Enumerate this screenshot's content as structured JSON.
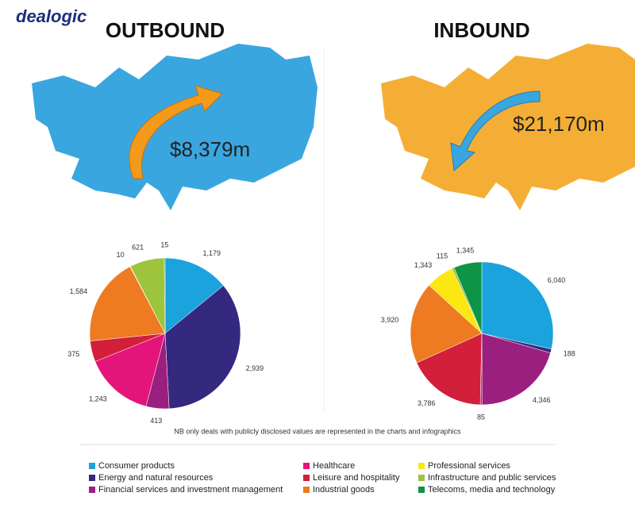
{
  "logo": "dealogic",
  "note": "NB only deals with publicly disclosed values are represented in the charts and infographics",
  "categories": [
    "Consumer products",
    "Energy and natural resources",
    "Financial services and investment management",
    "Healthcare",
    "Leisure and hospitality",
    "Industrial goods",
    "Professional services",
    "Infrastructure and public services",
    "Telecoms, media and technology"
  ],
  "colors": [
    "#1aa3dc",
    "#35287f",
    "#9b1f7e",
    "#e3157a",
    "#d21f3a",
    "#ee7b22",
    "#fce712",
    "#9dc43a",
    "#0d9447"
  ],
  "chart_data": [
    {
      "type": "pie",
      "title": "OUTBOUND",
      "amount": "$8,379m",
      "map_color": "#3aa6e0",
      "values": [
        1179,
        2939,
        413,
        1243,
        375,
        1584,
        10,
        621,
        15
      ],
      "value_labels": [
        "1,179",
        "2,939",
        "413",
        "1,243",
        "375",
        "1,584",
        "10",
        "621",
        "15"
      ]
    },
    {
      "type": "pie",
      "title": "INBOUND",
      "amount": "$21,170m",
      "map_color": "#f5ae35",
      "values": [
        6040,
        188,
        4346,
        85,
        3786,
        3920,
        1343,
        115,
        1345
      ],
      "value_labels": [
        "6,040",
        "188",
        "4,346",
        "85",
        "3,786",
        "3,920",
        "1,343",
        "115",
        "1,345"
      ]
    }
  ]
}
